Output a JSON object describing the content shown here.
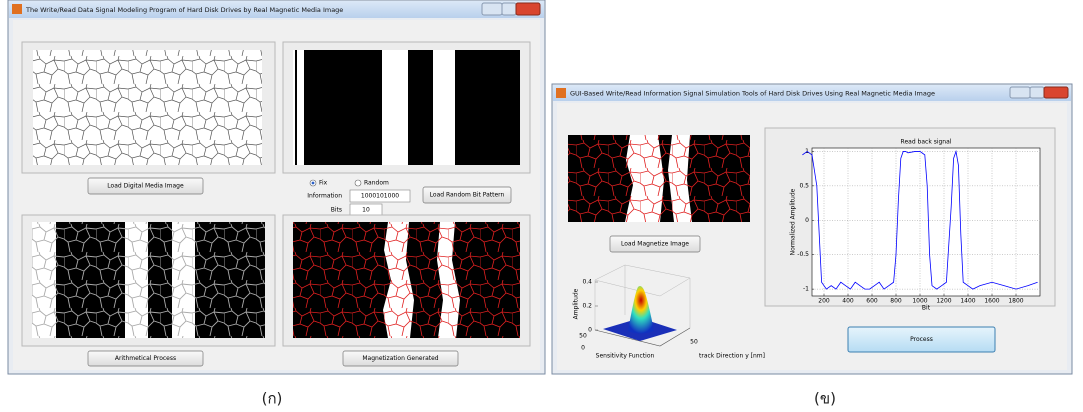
{
  "windows": [
    {
      "title": "The Write/Read Data Signal Modeling Program of Hard Disk Drives by Real Magnetic Media Image",
      "buttons": [
        "Load Digital Media Image",
        "Load Random Bit Pattern",
        "Arithmetical Process",
        "Magnetization Generated"
      ],
      "options": [
        "Fix",
        "Random"
      ],
      "fields": [
        {
          "label": "Information",
          "value": "1000101000"
        },
        {
          "label": "Bits",
          "value": 10
        }
      ]
    },
    {
      "title": "GUI-Based Write/Read Information Signal Simulation Tools of Hard Disk Drives Using Real Magnetic Media Image",
      "buttons": [
        "Load Magnetize Image",
        "Process"
      ],
      "surface": {
        "zlabel": "Amplitude",
        "zticks": [
          0,
          0.2,
          0.4
        ],
        "xticks": [
          50,
          0
        ],
        "yticks": [
          50
        ],
        "xlabel": "Sensitivity Function",
        "ylabel": "track Direction y [nm]"
      },
      "plot": {
        "type": "line",
        "title": "Read back signal",
        "xlabel": "Bit",
        "ylabel": "Normalized Amplitude",
        "x": [
          20,
          60,
          100,
          140,
          180,
          220,
          260,
          300,
          340,
          380,
          420,
          460,
          500,
          540,
          580,
          620,
          660,
          700,
          740,
          780,
          800,
          820,
          840,
          860,
          880,
          900,
          960,
          1000,
          1040,
          1060,
          1080,
          1100,
          1140,
          1180,
          1220,
          1260,
          1280,
          1300,
          1320,
          1340,
          1360,
          1400,
          1440,
          1500,
          1600,
          1700,
          1800,
          1900,
          1980
        ],
        "series": [
          {
            "color": "#0000ff",
            "values": [
              0.95,
              1,
              0.95,
              0.5,
              -0.9,
              -1,
              -0.95,
              -1,
              -0.9,
              -0.95,
              -1,
              -0.9,
              -0.95,
              -1,
              -1,
              -0.95,
              -0.9,
              -1,
              -0.95,
              -0.9,
              -0.5,
              0.3,
              0.9,
              1,
              1,
              0.98,
              1,
              1,
              0.95,
              0.5,
              -0.5,
              -0.95,
              -1,
              -0.95,
              -0.9,
              0.2,
              0.9,
              1,
              0.8,
              -0.2,
              -0.9,
              -0.95,
              -1,
              -0.95,
              -0.9,
              -0.95,
              -1,
              -0.95,
              -0.9
            ]
          }
        ],
        "xlim": [
          100,
          2000
        ],
        "ylim": [
          -1.1,
          1.05
        ],
        "xticks": [
          200,
          400,
          600,
          800,
          1000,
          1200,
          1400,
          1600,
          1800
        ],
        "yticks": [
          -1,
          -0.5,
          0,
          0.5,
          1
        ],
        "grid": true
      }
    }
  ],
  "captions": [
    "(ก)",
    "(ข)"
  ]
}
